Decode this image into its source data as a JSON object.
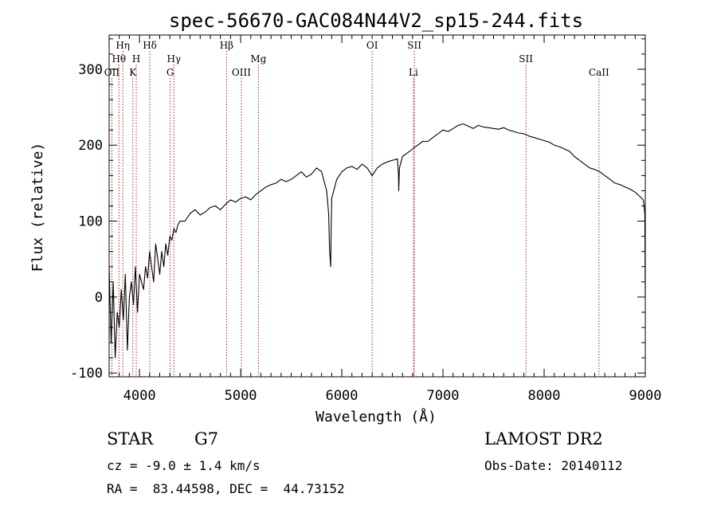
{
  "chart_data": {
    "type": "line",
    "title": "spec-56670-GAC084N44V2_sp15-244.fits",
    "xlabel": "Wavelength (Å)",
    "ylabel": "Flux (relative)",
    "xlim": [
      3700,
      9000
    ],
    "ylim": [
      -105,
      345
    ],
    "xticks": [
      4000,
      5000,
      6000,
      7000,
      8000,
      9000
    ],
    "yticks": [
      -100,
      0,
      100,
      200,
      300
    ],
    "grid": false,
    "line_color": "#000000",
    "marker_color": "#b22222",
    "series": [
      {
        "x": [
          3700,
          3720,
          3740,
          3760,
          3780,
          3800,
          3820,
          3840,
          3860,
          3880,
          3900,
          3920,
          3940,
          3960,
          3980,
          4000,
          4020,
          4040,
          4060,
          4080,
          4100,
          4120,
          4140,
          4160,
          4180,
          4200,
          4220,
          4240,
          4260,
          4280,
          4300,
          4320,
          4340,
          4360,
          4380,
          4400,
          4450,
          4500,
          4550,
          4600,
          4650,
          4700,
          4750,
          4800,
          4850,
          4900,
          4950,
          5000,
          5050,
          5100,
          5150,
          5200,
          5250,
          5300,
          5350,
          5400,
          5450,
          5500,
          5550,
          5600,
          5650,
          5700,
          5750,
          5800,
          5850,
          5870,
          5880,
          5890,
          5895,
          5900,
          5950,
          6000,
          6050,
          6100,
          6150,
          6200,
          6250,
          6300,
          6350,
          6400,
          6450,
          6500,
          6550,
          6560,
          6563,
          6570,
          6600,
          6650,
          6700,
          6750,
          6800,
          6850,
          6900,
          6950,
          7000,
          7050,
          7100,
          7150,
          7200,
          7250,
          7300,
          7350,
          7400,
          7450,
          7500,
          7550,
          7600,
          7650,
          7700,
          7750,
          7800,
          7850,
          7900,
          7950,
          8000,
          8050,
          8100,
          8150,
          8200,
          8250,
          8300,
          8350,
          8400,
          8450,
          8500,
          8550,
          8600,
          8650,
          8700,
          8750,
          8800,
          8850,
          8900,
          8950,
          8980,
          8995,
          9000
        ],
        "y": [
          40,
          -60,
          20,
          -80,
          -20,
          -40,
          10,
          -30,
          30,
          -70,
          0,
          20,
          -10,
          40,
          -20,
          30,
          20,
          10,
          40,
          25,
          60,
          40,
          20,
          70,
          50,
          30,
          60,
          40,
          70,
          55,
          80,
          75,
          90,
          85,
          95,
          100,
          100,
          110,
          115,
          108,
          112,
          118,
          120,
          115,
          122,
          128,
          125,
          130,
          132,
          128,
          135,
          140,
          145,
          148,
          150,
          155,
          152,
          155,
          160,
          165,
          158,
          162,
          170,
          165,
          140,
          110,
          60,
          40,
          90,
          130,
          155,
          165,
          170,
          172,
          168,
          175,
          170,
          160,
          170,
          175,
          178,
          180,
          182,
          160,
          140,
          170,
          185,
          190,
          195,
          200,
          205,
          205,
          210,
          215,
          220,
          218,
          222,
          226,
          228,
          225,
          222,
          226,
          224,
          223,
          222,
          221,
          223,
          220,
          218,
          216,
          215,
          212,
          210,
          208,
          206,
          204,
          200,
          198,
          195,
          192,
          185,
          180,
          175,
          170,
          168,
          165,
          160,
          155,
          150,
          148,
          145,
          142,
          138,
          132,
          128,
          110,
          0
        ]
      }
    ],
    "lines_upper": [
      {
        "label": "Hη",
        "x": 3835
      },
      {
        "label": "Hδ",
        "x": 4102
      },
      {
        "label": "Hβ",
        "x": 4861
      },
      {
        "label": "OI",
        "x": 6300
      },
      {
        "label": "SII",
        "x": 6717
      }
    ],
    "lines_mid": [
      {
        "label": "Hθ",
        "x": 3797
      },
      {
        "label": "H",
        "x": 3968
      },
      {
        "label": "Hγ",
        "x": 4340
      },
      {
        "label": "Mg",
        "x": 5175
      },
      {
        "label": "SII",
        "x": 7820
      }
    ],
    "lines_lower": [
      {
        "label": "OII",
        "x": 3727
      },
      {
        "label": "K",
        "x": 3934
      },
      {
        "label": "G",
        "x": 4304
      },
      {
        "label": "OIII",
        "x": 5007
      },
      {
        "label": "Li",
        "x": 6708
      },
      {
        "label": "CaII",
        "x": 8542
      }
    ]
  },
  "info": {
    "class": "STAR",
    "subclass": "G7",
    "survey": "LAMOST DR2",
    "cz": "cz = -9.0 ± 1.4 km/s",
    "obs_date": "Obs-Date: 20140112",
    "coords": "RA =  83.44598, DEC =  44.73152"
  }
}
